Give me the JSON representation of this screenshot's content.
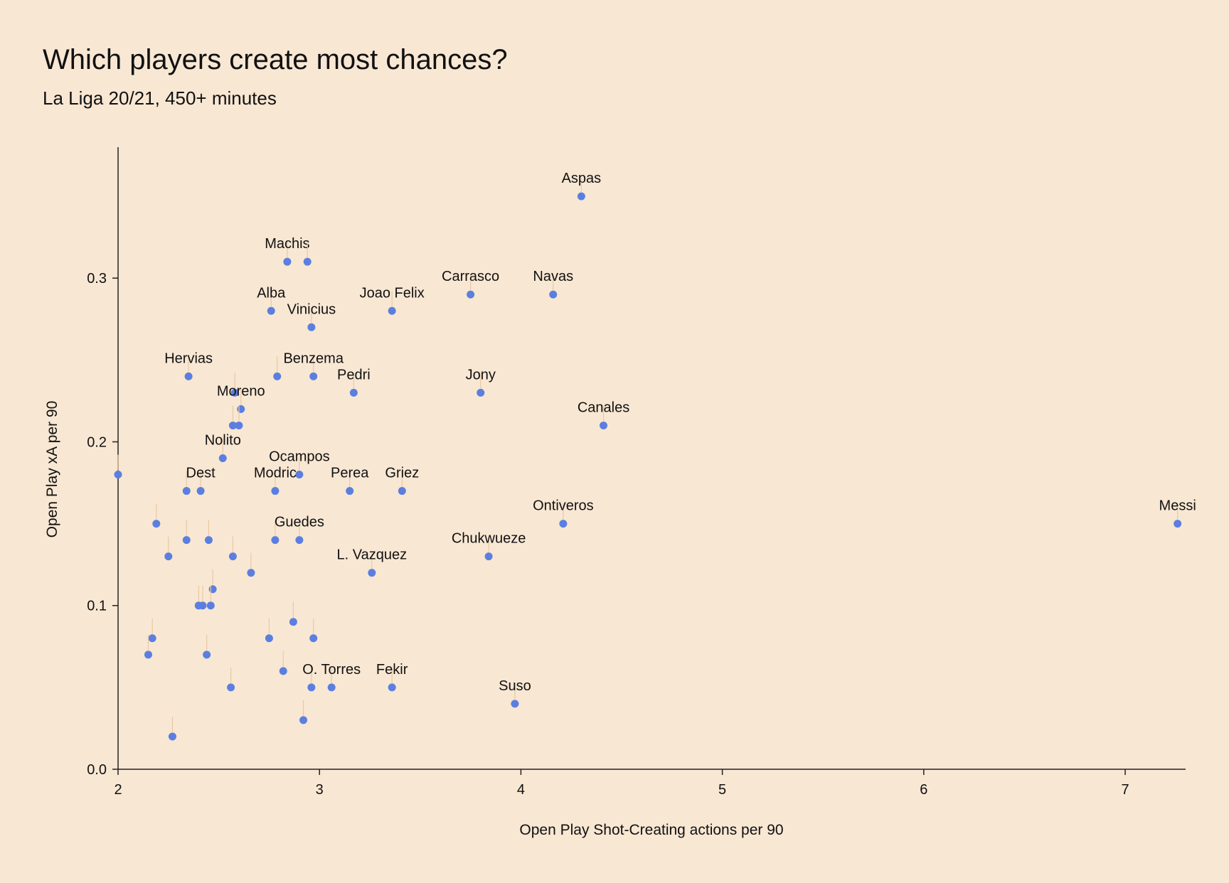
{
  "chart_data": {
    "type": "scatter",
    "title": "Which players create most chances?",
    "subtitle": "La Liga 20/21, 450+ minutes",
    "xlabel": "Open Play Shot-Creating actions per 90",
    "ylabel": "Open Play xA per 90",
    "xlim": [
      2,
      7.3
    ],
    "ylim": [
      0,
      0.38
    ],
    "xticks": [
      "2",
      "3",
      "4",
      "5",
      "6",
      "7"
    ],
    "yticks": [
      "0.0",
      "0.1",
      "0.2",
      "0.3"
    ],
    "point_color": "#5b7fe0",
    "background": "#f8e7d3",
    "points": [
      {
        "x": 4.3,
        "y": 0.35,
        "label": "Aspas"
      },
      {
        "x": 2.84,
        "y": 0.31,
        "label": "Machis"
      },
      {
        "x": 2.94,
        "y": 0.31,
        "label": ""
      },
      {
        "x": 3.75,
        "y": 0.29,
        "label": "Carrasco"
      },
      {
        "x": 4.16,
        "y": 0.29,
        "label": "Navas"
      },
      {
        "x": 2.76,
        "y": 0.28,
        "label": "Alba"
      },
      {
        "x": 3.36,
        "y": 0.28,
        "label": "Joao Felix"
      },
      {
        "x": 2.96,
        "y": 0.27,
        "label": "Vinicius"
      },
      {
        "x": 2.35,
        "y": 0.24,
        "label": "Hervias"
      },
      {
        "x": 2.79,
        "y": 0.24,
        "label": ""
      },
      {
        "x": 2.97,
        "y": 0.24,
        "label": "Benzema"
      },
      {
        "x": 3.17,
        "y": 0.23,
        "label": "Pedri"
      },
      {
        "x": 3.8,
        "y": 0.23,
        "label": "Jony"
      },
      {
        "x": 2.58,
        "y": 0.23,
        "label": ""
      },
      {
        "x": 2.61,
        "y": 0.22,
        "label": "Moreno"
      },
      {
        "x": 4.41,
        "y": 0.21,
        "label": "Canales"
      },
      {
        "x": 2.57,
        "y": 0.21,
        "label": ""
      },
      {
        "x": 2.6,
        "y": 0.21,
        "label": ""
      },
      {
        "x": 2.52,
        "y": 0.19,
        "label": "Nolito"
      },
      {
        "x": 2.0,
        "y": 0.18,
        "label": ""
      },
      {
        "x": 2.9,
        "y": 0.18,
        "label": "Ocampos"
      },
      {
        "x": 2.34,
        "y": 0.17,
        "label": ""
      },
      {
        "x": 2.41,
        "y": 0.17,
        "label": "Dest"
      },
      {
        "x": 2.78,
        "y": 0.17,
        "label": "Modric"
      },
      {
        "x": 3.15,
        "y": 0.17,
        "label": "Perea"
      },
      {
        "x": 3.41,
        "y": 0.17,
        "label": "Griez"
      },
      {
        "x": 2.19,
        "y": 0.15,
        "label": ""
      },
      {
        "x": 4.21,
        "y": 0.15,
        "label": "Ontiveros"
      },
      {
        "x": 7.26,
        "y": 0.15,
        "label": "Messi"
      },
      {
        "x": 2.34,
        "y": 0.14,
        "label": ""
      },
      {
        "x": 2.45,
        "y": 0.14,
        "label": ""
      },
      {
        "x": 2.78,
        "y": 0.14,
        "label": ""
      },
      {
        "x": 2.9,
        "y": 0.14,
        "label": "Guedes"
      },
      {
        "x": 2.25,
        "y": 0.13,
        "label": ""
      },
      {
        "x": 2.57,
        "y": 0.13,
        "label": ""
      },
      {
        "x": 3.84,
        "y": 0.13,
        "label": "Chukwueze"
      },
      {
        "x": 2.66,
        "y": 0.12,
        "label": ""
      },
      {
        "x": 3.26,
        "y": 0.12,
        "label": "L. Vazquez"
      },
      {
        "x": 2.47,
        "y": 0.11,
        "label": ""
      },
      {
        "x": 2.4,
        "y": 0.1,
        "label": ""
      },
      {
        "x": 2.42,
        "y": 0.1,
        "label": ""
      },
      {
        "x": 2.46,
        "y": 0.1,
        "label": ""
      },
      {
        "x": 2.87,
        "y": 0.09,
        "label": ""
      },
      {
        "x": 2.17,
        "y": 0.08,
        "label": ""
      },
      {
        "x": 2.75,
        "y": 0.08,
        "label": ""
      },
      {
        "x": 2.97,
        "y": 0.08,
        "label": ""
      },
      {
        "x": 2.15,
        "y": 0.07,
        "label": ""
      },
      {
        "x": 2.44,
        "y": 0.07,
        "label": ""
      },
      {
        "x": 2.82,
        "y": 0.06,
        "label": ""
      },
      {
        "x": 2.56,
        "y": 0.05,
        "label": ""
      },
      {
        "x": 2.96,
        "y": 0.05,
        "label": ""
      },
      {
        "x": 3.06,
        "y": 0.05,
        "label": "O. Torres"
      },
      {
        "x": 3.36,
        "y": 0.05,
        "label": "Fekir"
      },
      {
        "x": 3.97,
        "y": 0.04,
        "label": "Suso"
      },
      {
        "x": 2.92,
        "y": 0.03,
        "label": ""
      },
      {
        "x": 2.27,
        "y": 0.02,
        "label": ""
      }
    ]
  }
}
